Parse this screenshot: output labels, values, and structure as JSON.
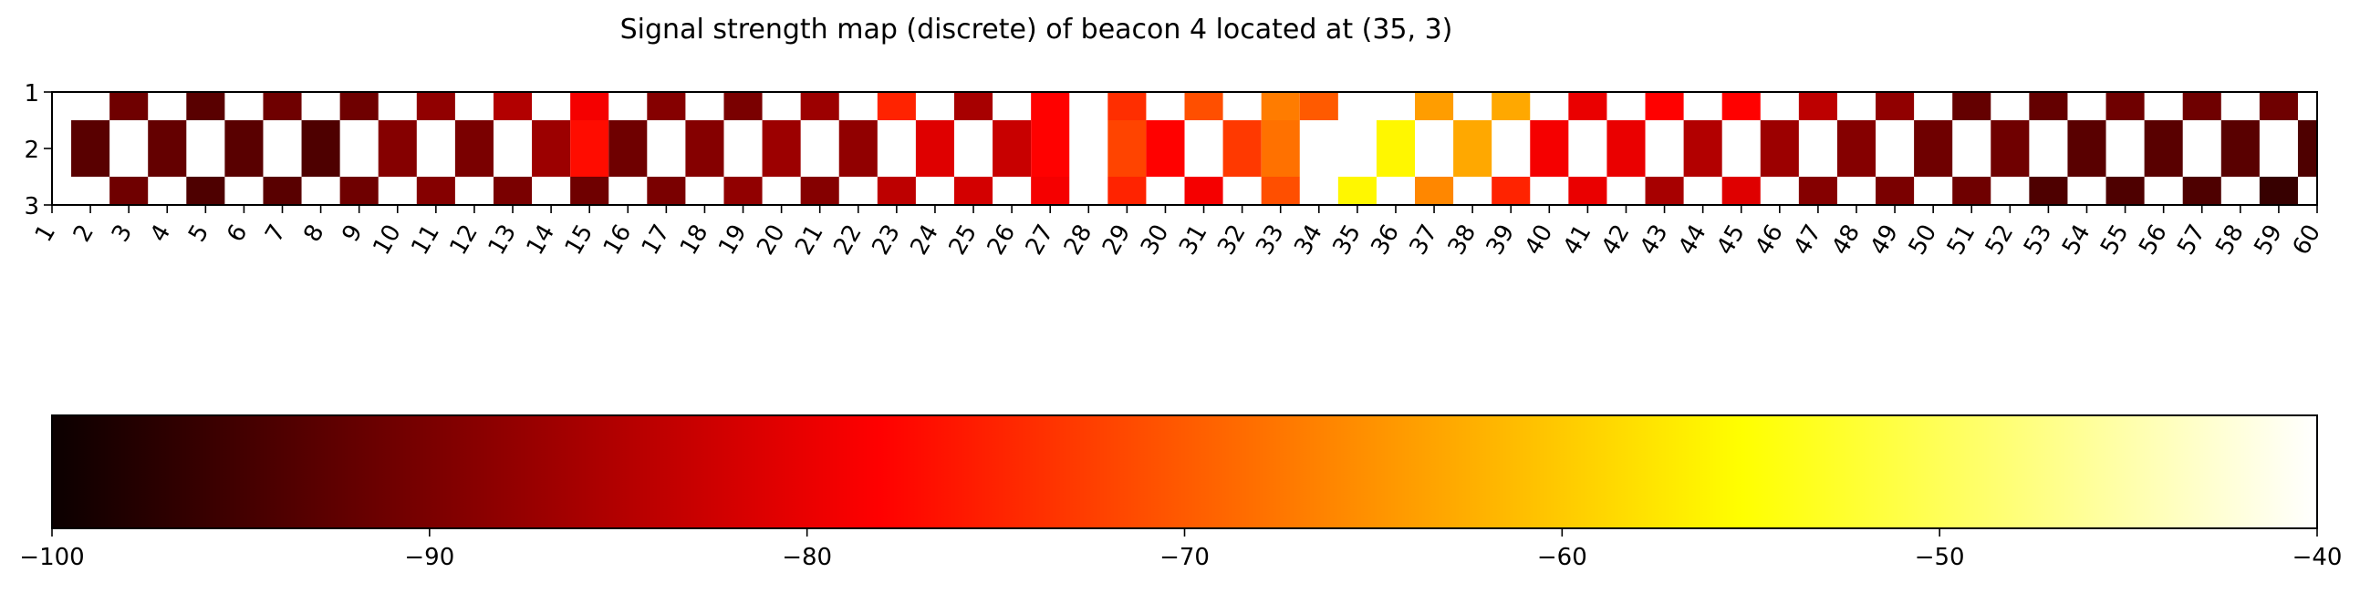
{
  "chart_data": {
    "type": "heatmap",
    "title": "Signal strength map (discrete) of beacon 4 located at (35, 3)",
    "x_ticks": [
      "1",
      "2",
      "3",
      "4",
      "5",
      "6",
      "7",
      "8",
      "9",
      "10",
      "11",
      "12",
      "13",
      "14",
      "15",
      "16",
      "17",
      "18",
      "19",
      "20",
      "21",
      "22",
      "23",
      "24",
      "25",
      "26",
      "27",
      "28",
      "29",
      "30",
      "31",
      "32",
      "33",
      "34",
      "35",
      "36",
      "37",
      "38",
      "39",
      "40",
      "41",
      "42",
      "43",
      "44",
      "45",
      "46",
      "47",
      "48",
      "49",
      "50",
      "51",
      "52",
      "53",
      "54",
      "55",
      "56",
      "57",
      "58",
      "59",
      "60"
    ],
    "y_ticks": [
      "1",
      "2",
      "3"
    ],
    "colormap": "hot",
    "vmin": -100,
    "vmax": -40,
    "colorbar_ticks": [
      "−100",
      "−90",
      "−80",
      "−70",
      "−60",
      "−50",
      "−40"
    ],
    "colorbar_values": [
      -100,
      -90,
      -80,
      -70,
      -60,
      -50,
      -40
    ],
    "missing_color": "#ffffff",
    "cells": [
      {
        "x": 2,
        "y": 2,
        "value": -93
      },
      {
        "x": 3,
        "y": 1,
        "value": -91
      },
      {
        "x": 3,
        "y": 3,
        "value": -91
      },
      {
        "x": 4,
        "y": 2,
        "value": -92
      },
      {
        "x": 5,
        "y": 1,
        "value": -93
      },
      {
        "x": 5,
        "y": 3,
        "value": -94
      },
      {
        "x": 6,
        "y": 2,
        "value": -93
      },
      {
        "x": 7,
        "y": 1,
        "value": -91
      },
      {
        "x": 7,
        "y": 3,
        "value": -93
      },
      {
        "x": 8,
        "y": 2,
        "value": -94
      },
      {
        "x": 9,
        "y": 1,
        "value": -91
      },
      {
        "x": 9,
        "y": 3,
        "value": -91
      },
      {
        "x": 10,
        "y": 2,
        "value": -89
      },
      {
        "x": 11,
        "y": 1,
        "value": -88
      },
      {
        "x": 11,
        "y": 3,
        "value": -89
      },
      {
        "x": 12,
        "y": 2,
        "value": -90
      },
      {
        "x": 13,
        "y": 1,
        "value": -85
      },
      {
        "x": 13,
        "y": 3,
        "value": -90
      },
      {
        "x": 14,
        "y": 2,
        "value": -87
      },
      {
        "x": 15,
        "y": 1,
        "value": -79
      },
      {
        "x": 15,
        "y": 2,
        "value": -77
      },
      {
        "x": 15,
        "y": 3,
        "value": -91
      },
      {
        "x": 16,
        "y": 2,
        "value": -91
      },
      {
        "x": 17,
        "y": 1,
        "value": -89
      },
      {
        "x": 17,
        "y": 3,
        "value": -90
      },
      {
        "x": 18,
        "y": 2,
        "value": -89
      },
      {
        "x": 19,
        "y": 1,
        "value": -90
      },
      {
        "x": 19,
        "y": 3,
        "value": -88
      },
      {
        "x": 20,
        "y": 2,
        "value": -87
      },
      {
        "x": 21,
        "y": 1,
        "value": -87
      },
      {
        "x": 21,
        "y": 3,
        "value": -89
      },
      {
        "x": 22,
        "y": 2,
        "value": -88
      },
      {
        "x": 23,
        "y": 1,
        "value": -75
      },
      {
        "x": 23,
        "y": 3,
        "value": -84
      },
      {
        "x": 24,
        "y": 2,
        "value": -81
      },
      {
        "x": 25,
        "y": 1,
        "value": -86
      },
      {
        "x": 25,
        "y": 3,
        "value": -82
      },
      {
        "x": 26,
        "y": 2,
        "value": -83
      },
      {
        "x": 27,
        "y": 1,
        "value": -78
      },
      {
        "x": 27,
        "y": 2,
        "value": -78
      },
      {
        "x": 27,
        "y": 3,
        "value": -79
      },
      {
        "x": 29,
        "y": 1,
        "value": -74
      },
      {
        "x": 29,
        "y": 2,
        "value": -72
      },
      {
        "x": 29,
        "y": 3,
        "value": -75
      },
      {
        "x": 30,
        "y": 2,
        "value": -78
      },
      {
        "x": 31,
        "y": 1,
        "value": -71
      },
      {
        "x": 31,
        "y": 3,
        "value": -79
      },
      {
        "x": 32,
        "y": 2,
        "value": -73
      },
      {
        "x": 33,
        "y": 1,
        "value": -67
      },
      {
        "x": 33,
        "y": 2,
        "value": -68
      },
      {
        "x": 33,
        "y": 3,
        "value": -71
      },
      {
        "x": 34,
        "y": 1,
        "value": -70
      },
      {
        "x": 35,
        "y": 3,
        "value": -56
      },
      {
        "x": 36,
        "y": 2,
        "value": -56
      },
      {
        "x": 37,
        "y": 1,
        "value": -64
      },
      {
        "x": 37,
        "y": 3,
        "value": -66
      },
      {
        "x": 38,
        "y": 2,
        "value": -63
      },
      {
        "x": 39,
        "y": 1,
        "value": -63
      },
      {
        "x": 39,
        "y": 3,
        "value": -75
      },
      {
        "x": 40,
        "y": 2,
        "value": -79
      },
      {
        "x": 41,
        "y": 1,
        "value": -80
      },
      {
        "x": 41,
        "y": 3,
        "value": -80
      },
      {
        "x": 42,
        "y": 2,
        "value": -80
      },
      {
        "x": 43,
        "y": 1,
        "value": -78
      },
      {
        "x": 43,
        "y": 3,
        "value": -86
      },
      {
        "x": 44,
        "y": 2,
        "value": -85
      },
      {
        "x": 45,
        "y": 1,
        "value": -78
      },
      {
        "x": 45,
        "y": 3,
        "value": -81
      },
      {
        "x": 46,
        "y": 2,
        "value": -87
      },
      {
        "x": 47,
        "y": 1,
        "value": -84
      },
      {
        "x": 47,
        "y": 3,
        "value": -89
      },
      {
        "x": 48,
        "y": 2,
        "value": -89
      },
      {
        "x": 49,
        "y": 1,
        "value": -88
      },
      {
        "x": 49,
        "y": 3,
        "value": -90
      },
      {
        "x": 50,
        "y": 2,
        "value": -91
      },
      {
        "x": 51,
        "y": 1,
        "value": -92
      },
      {
        "x": 51,
        "y": 3,
        "value": -91
      },
      {
        "x": 52,
        "y": 2,
        "value": -91
      },
      {
        "x": 53,
        "y": 1,
        "value": -92
      },
      {
        "x": 53,
        "y": 3,
        "value": -94
      },
      {
        "x": 54,
        "y": 2,
        "value": -93
      },
      {
        "x": 55,
        "y": 1,
        "value": -91
      },
      {
        "x": 55,
        "y": 3,
        "value": -94
      },
      {
        "x": 56,
        "y": 2,
        "value": -93
      },
      {
        "x": 57,
        "y": 1,
        "value": -91
      },
      {
        "x": 57,
        "y": 3,
        "value": -94
      },
      {
        "x": 58,
        "y": 2,
        "value": -93
      },
      {
        "x": 59,
        "y": 1,
        "value": -91
      },
      {
        "x": 59,
        "y": 3,
        "value": -96
      },
      {
        "x": 60,
        "y": 2,
        "value": -94
      }
    ]
  }
}
